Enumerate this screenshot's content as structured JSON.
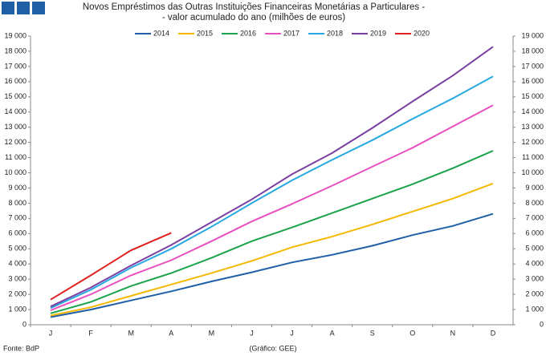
{
  "chart_data": {
    "type": "line",
    "title": "Novos Empréstimos das Outras Instituições Financeiras Monetárias a Particulares -",
    "subtitle": "- valor acumulado do ano (milhões de euros)",
    "categories": [
      "J",
      "F",
      "M",
      "A",
      "M",
      "J",
      "J",
      "A",
      "S",
      "O",
      "N",
      "D"
    ],
    "series": [
      {
        "name": "2014",
        "color": "#1f5fa6",
        "values": [
          500,
          1000,
          1600,
          2200,
          2850,
          3450,
          4100,
          4600,
          5200,
          5900,
          6500,
          7300
        ]
      },
      {
        "name": "2015",
        "color": "#f5b800",
        "values": [
          600,
          1150,
          1900,
          2650,
          3400,
          4200,
          5100,
          5800,
          6600,
          7450,
          8300,
          9300
        ]
      },
      {
        "name": "2016",
        "color": "#1aa34a",
        "values": [
          750,
          1500,
          2550,
          3400,
          4400,
          5500,
          6400,
          7350,
          8300,
          9250,
          10300,
          11450
        ]
      },
      {
        "name": "2017",
        "color": "#e84fc0",
        "values": [
          950,
          2000,
          3250,
          4250,
          5500,
          6800,
          7950,
          9150,
          10400,
          11650,
          13050,
          14450
        ]
      },
      {
        "name": "2018",
        "color": "#27a8e0",
        "values": [
          1100,
          2300,
          3750,
          5000,
          6450,
          8000,
          9500,
          10850,
          12150,
          13550,
          14900,
          16350
        ]
      },
      {
        "name": "2019",
        "color": "#7a3fa0",
        "values": [
          1200,
          2450,
          3900,
          5250,
          6750,
          8250,
          9900,
          11300,
          12950,
          14700,
          16400,
          18300
        ]
      },
      {
        "name": "2020",
        "color": "#e02020",
        "values": [
          1650,
          3250,
          4900,
          6050,
          null,
          null,
          null,
          null,
          null,
          null,
          null,
          null
        ]
      }
    ],
    "ylim": [
      0,
      19000
    ],
    "yticks": [
      0,
      {
        "value": 1000,
        "label": "1 000"
      },
      {
        "value": 2000,
        "label": "2 000"
      },
      {
        "value": 3000,
        "label": "3 000"
      },
      {
        "value": 4000,
        "label": "4 000"
      },
      {
        "value": 5000,
        "label": "5 000"
      },
      {
        "value": 6000,
        "label": "6 000"
      },
      {
        "value": 7000,
        "label": "7 000"
      },
      {
        "value": 8000,
        "label": "8 000"
      },
      {
        "value": 9000,
        "label": "9 000"
      },
      {
        "value": 10000,
        "label": "10 000"
      },
      {
        "value": 11000,
        "label": "11 000"
      },
      {
        "value": 12000,
        "label": "12 000"
      },
      {
        "value": 13000,
        "label": "13 000"
      },
      {
        "value": 14000,
        "label": "14 000"
      },
      {
        "value": 15000,
        "label": "15 000"
      },
      {
        "value": 16000,
        "label": "16 000"
      },
      {
        "value": 17000,
        "label": "17 000"
      },
      {
        "value": 18000,
        "label": "18 000"
      },
      {
        "value": 19000,
        "label": "19 000"
      }
    ],
    "y2lim": [
      0,
      19000
    ],
    "y2ticks": [
      0,
      {
        "value": 1000,
        "label": "1 000"
      },
      {
        "value": 2000,
        "label": "2 000"
      },
      {
        "value": 3000,
        "label": "3 000"
      },
      {
        "value": 4000,
        "label": "4 000"
      },
      {
        "value": 5000,
        "label": "5 000"
      },
      {
        "value": 6000,
        "label": "6 000"
      },
      {
        "value": 7000,
        "label": "7 000"
      },
      {
        "value": 8000,
        "label": "8 000"
      },
      {
        "value": 9000,
        "label": "9 000"
      },
      {
        "value": 10000,
        "label": "10 000"
      },
      {
        "value": 11000,
        "label": "11 000"
      },
      {
        "value": 12000,
        "label": "12 000"
      },
      {
        "value": 13000,
        "label": "13 000"
      },
      {
        "value": 14000,
        "label": "14 000"
      },
      {
        "value": 15000,
        "label": "15 000"
      },
      {
        "value": 16000,
        "label": "16 000"
      },
      {
        "value": 17000,
        "label": "17 000"
      },
      {
        "value": 18000,
        "label": "18 000"
      },
      {
        "value": 19000,
        "label": "19 000"
      }
    ],
    "legend": "top",
    "grid": false,
    "source": "Fonte: BdP",
    "credit": "(Gráfico: GEE)"
  }
}
